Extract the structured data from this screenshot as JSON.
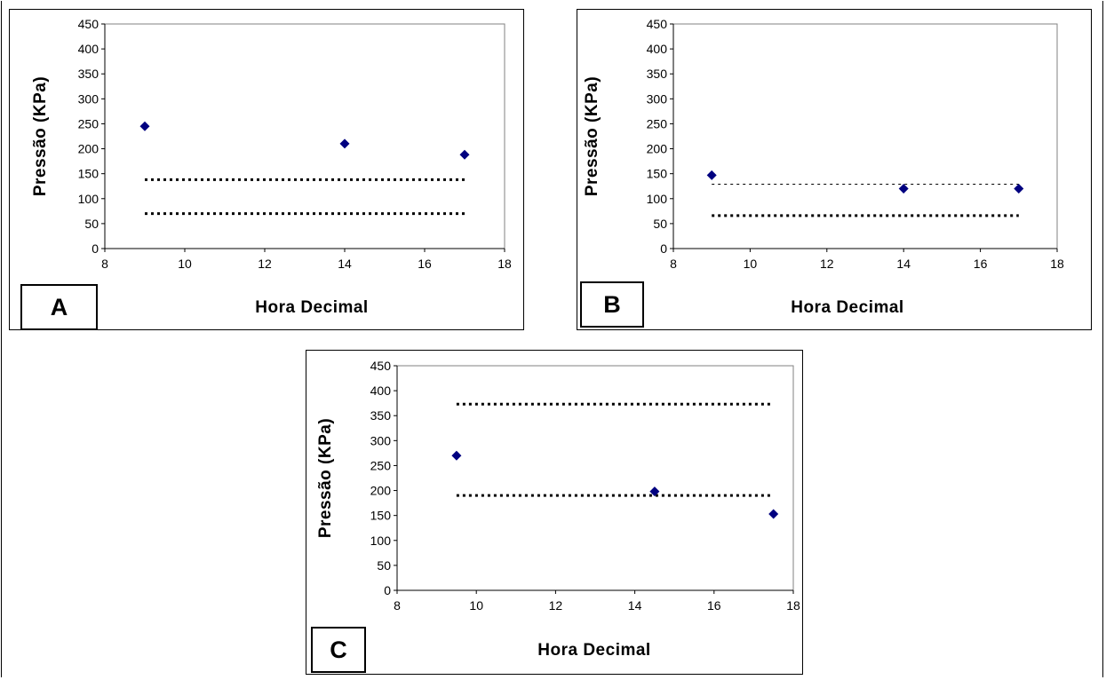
{
  "chart_data": [
    {
      "panel_label": "A",
      "type": "scatter",
      "xlabel": "Hora Decimal",
      "ylabel": "Pressão (KPa)",
      "xlim": [
        8,
        18
      ],
      "ylim": [
        0,
        450
      ],
      "xticks": [
        "8",
        "10",
        "12",
        "14",
        "16",
        "18"
      ],
      "yticks": [
        "0",
        "50",
        "100",
        "150",
        "200",
        "250",
        "300",
        "350",
        "400",
        "450"
      ],
      "grid": false,
      "marker_color": "#000080",
      "points": [
        {
          "x": 9,
          "y": 245
        },
        {
          "x": 14,
          "y": 210
        },
        {
          "x": 17,
          "y": 188
        }
      ],
      "reference_lines": [
        {
          "y": 138,
          "x_range": [
            9,
            17
          ],
          "style": "dotted"
        },
        {
          "y": 70,
          "x_range": [
            9,
            17
          ],
          "style": "dotted"
        }
      ]
    },
    {
      "panel_label": "B",
      "type": "scatter",
      "xlabel": "Hora Decimal",
      "ylabel": "Pressão (KPa)",
      "xlim": [
        8,
        18
      ],
      "ylim": [
        0,
        450
      ],
      "xticks": [
        "8",
        "10",
        "12",
        "14",
        "16",
        "18"
      ],
      "yticks": [
        "0",
        "50",
        "100",
        "150",
        "200",
        "250",
        "300",
        "350",
        "400",
        "450"
      ],
      "grid": false,
      "marker_color": "#000080",
      "points": [
        {
          "x": 9,
          "y": 147
        },
        {
          "x": 14,
          "y": 120
        },
        {
          "x": 17,
          "y": 120
        }
      ],
      "reference_lines": [
        {
          "y": 129,
          "x_range": [
            9,
            17
          ],
          "style": "dotted-thin"
        },
        {
          "y": 66,
          "x_range": [
            9,
            17
          ],
          "style": "dotted"
        }
      ]
    },
    {
      "panel_label": "C",
      "type": "scatter",
      "xlabel": "Hora Decimal",
      "ylabel": "Pressão (KPa)",
      "xlim": [
        8,
        18
      ],
      "ylim": [
        0,
        450
      ],
      "xticks": [
        "8",
        "10",
        "12",
        "14",
        "16",
        "18"
      ],
      "yticks": [
        "0",
        "50",
        "100",
        "150",
        "200",
        "250",
        "300",
        "350",
        "400",
        "450"
      ],
      "grid": false,
      "marker_color": "#000080",
      "points": [
        {
          "x": 9.5,
          "y": 270
        },
        {
          "x": 14.5,
          "y": 198
        },
        {
          "x": 17.5,
          "y": 153
        }
      ],
      "reference_lines": [
        {
          "y": 373,
          "x_range": [
            9.5,
            17.5
          ],
          "style": "dotted"
        },
        {
          "y": 190,
          "x_range": [
            9.5,
            17.5
          ],
          "style": "dotted"
        }
      ]
    }
  ]
}
